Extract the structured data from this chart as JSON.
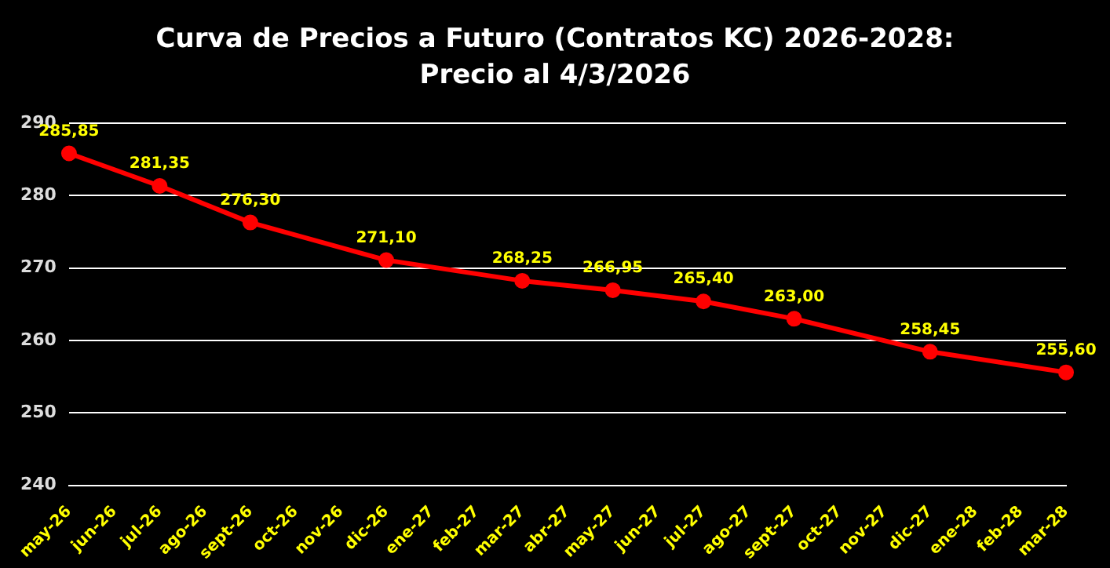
{
  "chart_data": {
    "type": "line",
    "title": "Curva de Precios a Futuro  (Contratos KC) 2026-2028:",
    "subtitle": "Precio al 4/3/2026",
    "categories": [
      "may-26",
      "jun-26",
      "jul-26",
      "ago-26",
      "sept-26",
      "oct-26",
      "nov-26",
      "dic-26",
      "ene-27",
      "feb-27",
      "mar-27",
      "abr-27",
      "may-27",
      "jun-27",
      "jul-27",
      "ago-27",
      "sept-27",
      "oct-27",
      "nov-27",
      "dic-27",
      "ene-28",
      "feb-28",
      "mar-28"
    ],
    "series": [
      {
        "color": "#ff0000",
        "values": [
          285.85,
          null,
          281.35,
          null,
          276.3,
          null,
          null,
          271.1,
          null,
          null,
          268.25,
          null,
          266.95,
          null,
          265.4,
          null,
          263.0,
          null,
          null,
          258.45,
          null,
          null,
          255.6
        ],
        "value_labels": [
          "285,85",
          null,
          "281,35",
          null,
          "276,30",
          null,
          null,
          "271,10",
          null,
          null,
          "268,25",
          null,
          "266,95",
          null,
          "265,40",
          null,
          "263,00",
          null,
          null,
          "258,45",
          null,
          null,
          "255,60"
        ]
      }
    ],
    "ylim": [
      240,
      290
    ],
    "yticks": [
      240,
      250,
      260,
      270,
      280,
      290
    ],
    "grid": "y",
    "legend": false,
    "marker": "circle",
    "line_style": "solid"
  }
}
